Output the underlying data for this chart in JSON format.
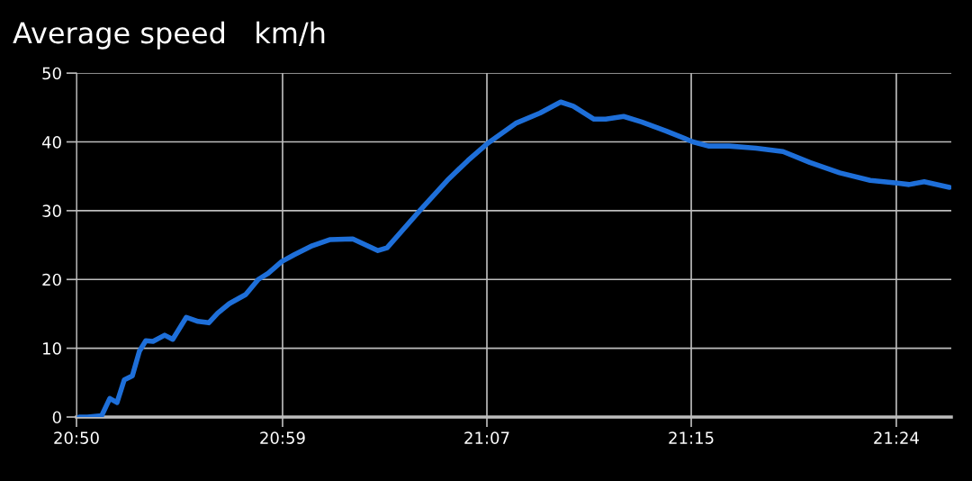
{
  "chart_data": {
    "type": "line",
    "title": "Average speed   km/h",
    "x": [
      20.8352,
      20.8408,
      20.8507,
      20.8563,
      20.8613,
      20.8663,
      20.8719,
      20.8768,
      20.8812,
      20.8862,
      20.8942,
      20.8998,
      20.9092,
      20.9173,
      20.9247,
      20.9309,
      20.939,
      20.9502,
      20.9589,
      20.9658,
      20.9751,
      20.9838,
      20.9962,
      21.0087,
      21.0242,
      21.0416,
      21.0479,
      21.0709,
      21.0895,
      21.1038,
      21.1169,
      21.1368,
      21.1536,
      21.1679,
      21.1766,
      21.1909,
      21.199,
      21.2114,
      21.2238,
      21.2406,
      21.2593,
      21.2699,
      21.2842,
      21.3028,
      21.3215,
      21.3401,
      21.3607,
      21.3818,
      21.4005,
      21.4086,
      21.4191,
      21.4365
    ],
    "series": [
      {
        "color": "#1e6fd9",
        "values": [
          0,
          0,
          0.2,
          2.7,
          2.1,
          5.4,
          6.0,
          9.6,
          11.1,
          11.0,
          11.9,
          11.3,
          14.5,
          13.9,
          13.7,
          15.1,
          16.5,
          17.8,
          20.0,
          20.9,
          22.6,
          23.6,
          24.9,
          25.8,
          25.9,
          24.2,
          24.6,
          30.1,
          34.4,
          37.3,
          39.7,
          42.7,
          44.2,
          45.8,
          45.2,
          43.3,
          43.3,
          43.7,
          42.9,
          41.6,
          40.0,
          39.4,
          39.4,
          39.1,
          38.6,
          37.0,
          35.5,
          34.4,
          34.0,
          33.8,
          34.2,
          33.4
        ]
      }
    ],
    "xlim": [
      20.8333,
      21.4378
    ],
    "xticks": [
      {
        "value": 20.8333,
        "label": "20:50"
      },
      {
        "value": 20.9757,
        "label": "20:59"
      },
      {
        "value": 21.1169,
        "label": "21:07"
      },
      {
        "value": 21.2581,
        "label": "21:15"
      },
      {
        "value": 21.3998,
        "label": "21:24"
      }
    ],
    "ylim": [
      0,
      50
    ],
    "yticks": [
      0,
      10,
      20,
      30,
      40,
      50
    ],
    "grid": true,
    "marker": "none",
    "line_style": "solid"
  }
}
